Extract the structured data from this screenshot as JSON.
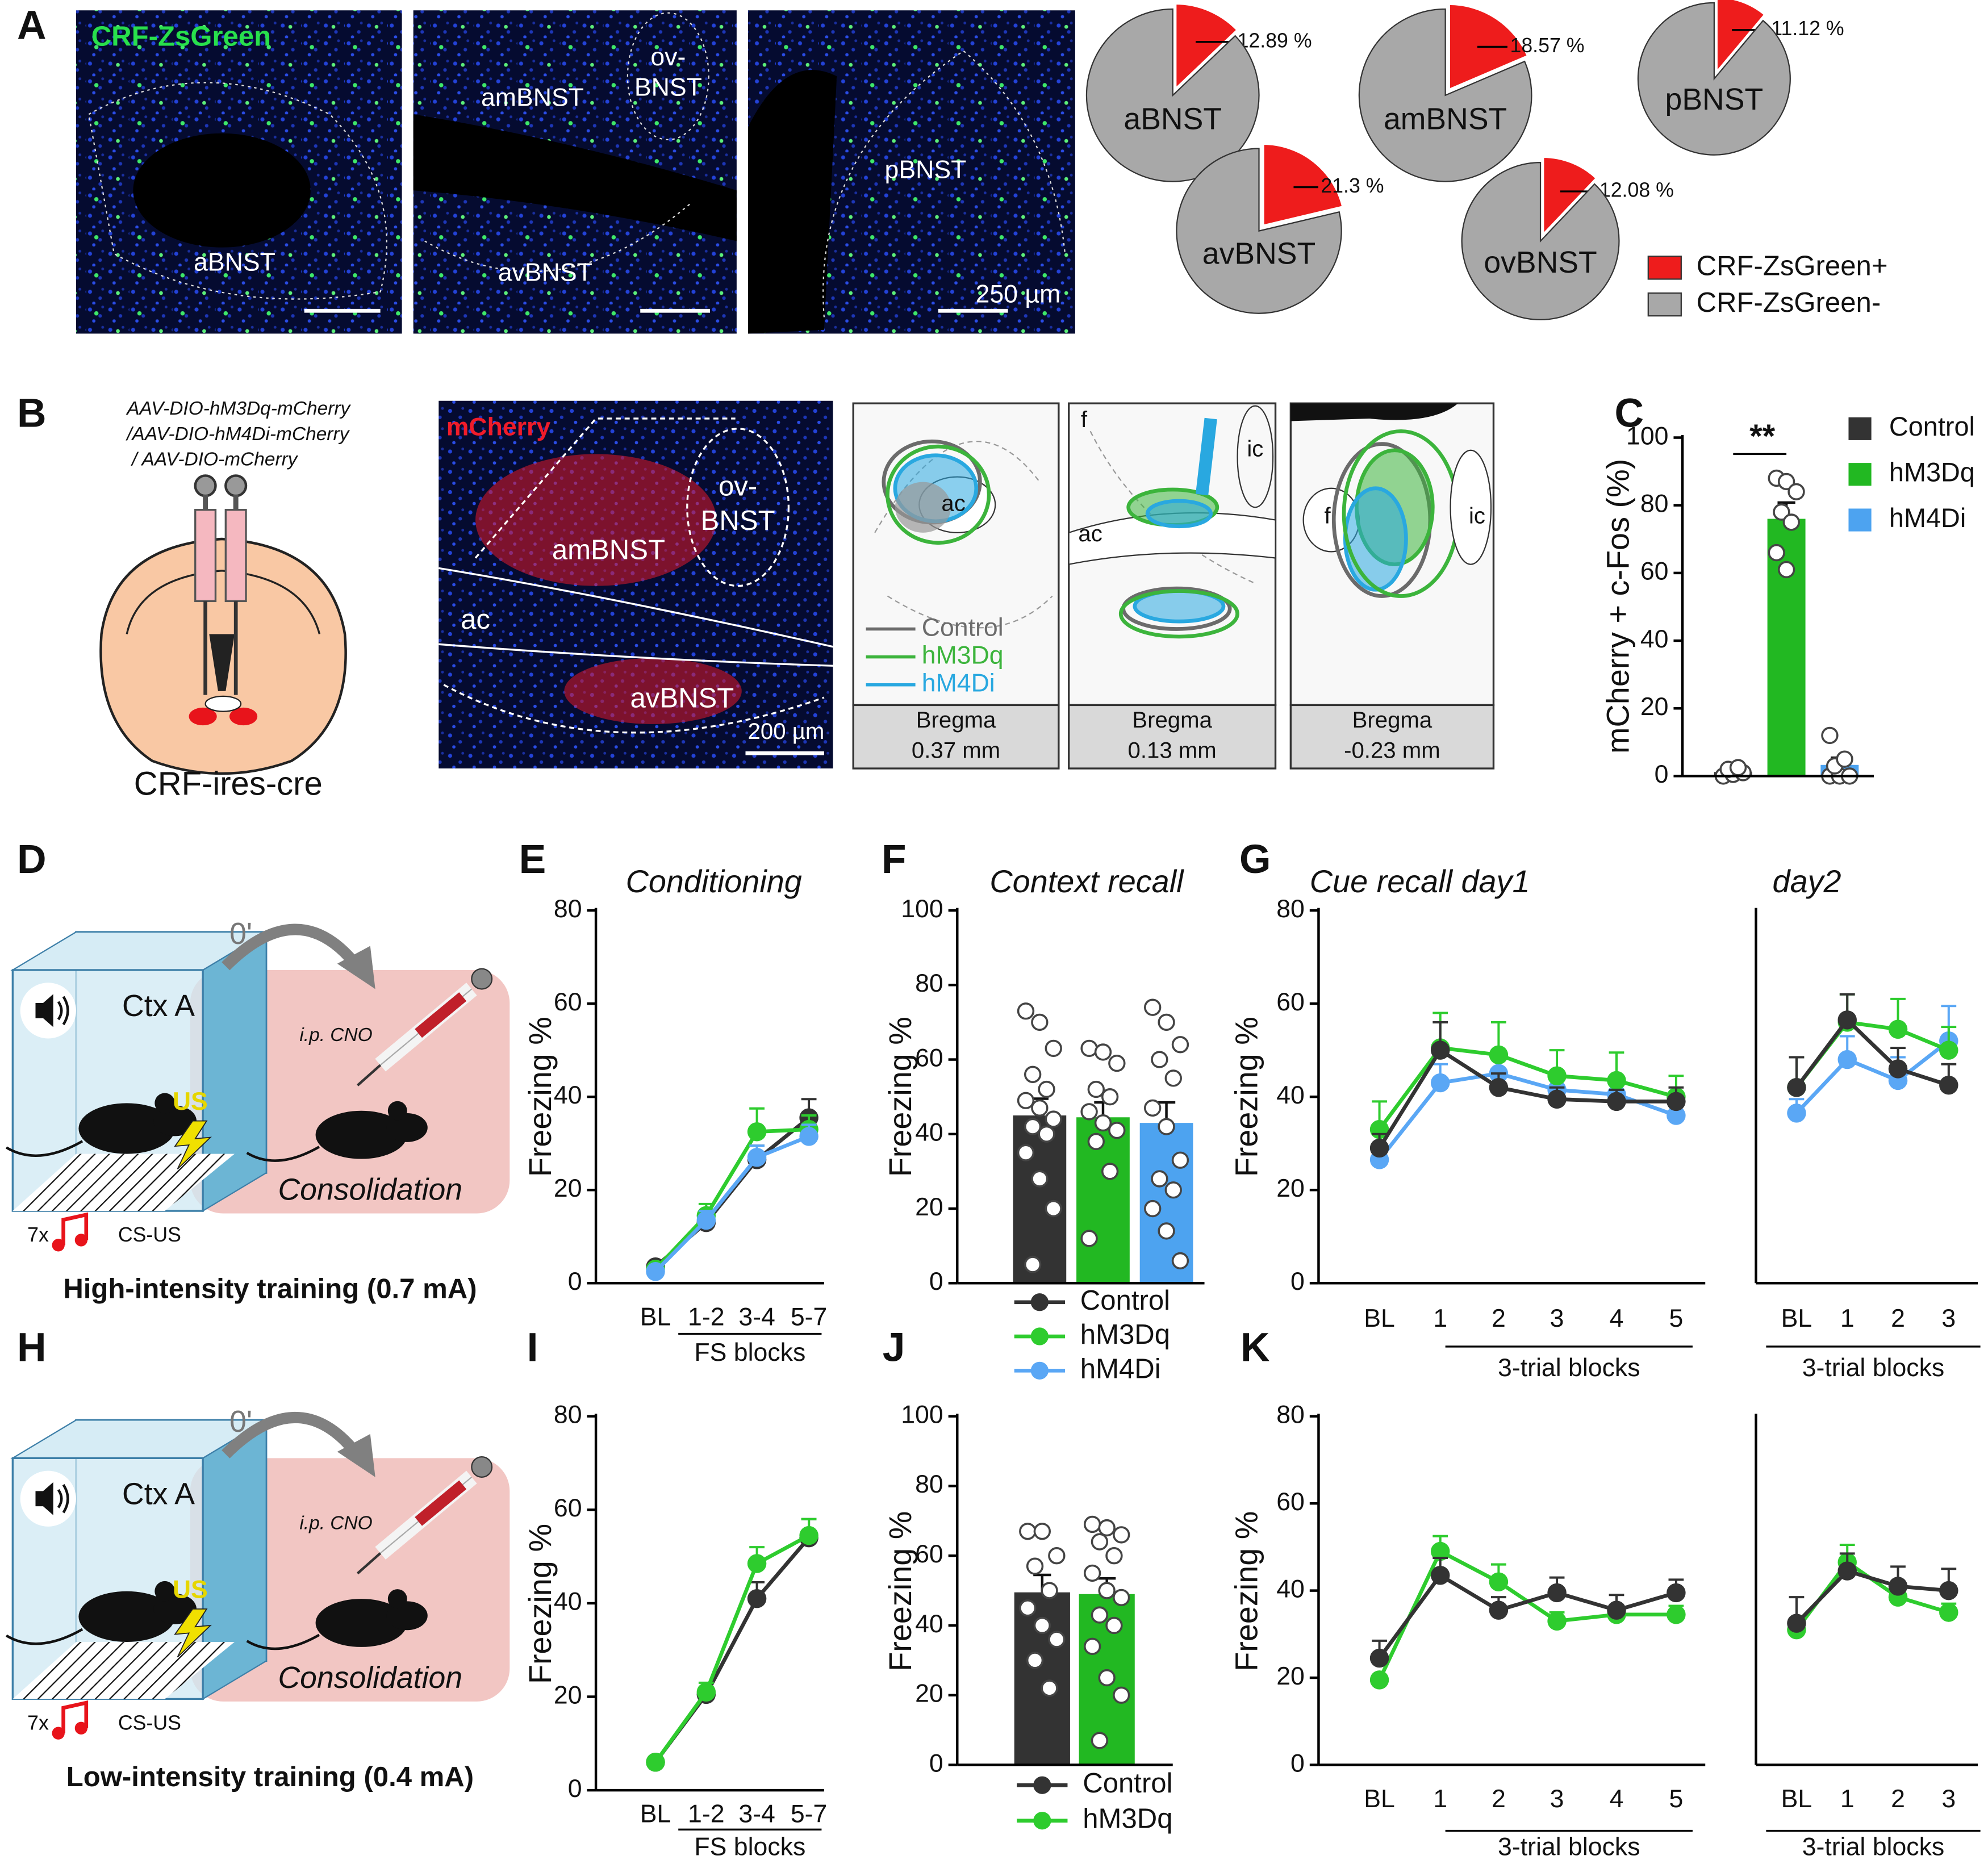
{
  "panel_labels": [
    "A",
    "B",
    "C",
    "D",
    "E",
    "F",
    "G",
    "H",
    "I",
    "J",
    "K"
  ],
  "panel_a": {
    "stain": "CRF-ZsGreen",
    "regions": [
      "aBNST",
      "amBNST",
      "avBNST",
      "pBNST"
    ],
    "ov": [
      "ov-",
      "BNST"
    ],
    "scale": "250 µm"
  },
  "panel_b": {
    "vectors": [
      "AAV-DIO-hM3Dq-mCherry",
      "/AAV-DIO-hM4Di-mCherry",
      "/ AAV-DIO-mCherry"
    ],
    "mouse_line": "CRF-ires-cre",
    "stain": "mCherry",
    "regions": [
      "amBNST",
      "avBNST",
      "ac"
    ],
    "ov": [
      "ov-",
      "BNST"
    ],
    "scale": "200 µm",
    "atlas_legend": [
      {
        "name": "Control",
        "color": "#6b6b6b"
      },
      {
        "name": "hM3Dq",
        "color": "#3cb43c"
      },
      {
        "name": "hM4Di",
        "color": "#29a8e0"
      }
    ],
    "atlas_labels": [
      [
        "ac"
      ],
      [
        "f",
        "ic",
        "ac"
      ],
      [
        "f",
        "ic"
      ]
    ],
    "bregma": [
      {
        "label": "Bregma",
        "level": "0.37 mm"
      },
      {
        "label": "Bregma",
        "level": "0.13 mm"
      },
      {
        "label": "Bregma",
        "level": "-0.23 mm"
      }
    ]
  },
  "panel_d": {
    "delay": "0'",
    "context": "Ctx A",
    "shock": "US",
    "injection": "i.p. CNO",
    "phase": "Consolidation",
    "trials": "7x",
    "pairing": "CS-US",
    "caption": "High-intensity training (0.7 mA)"
  },
  "panel_h": {
    "delay": "0'",
    "context": "Ctx A",
    "shock": "US",
    "injection": "i.p. CNO",
    "phase": "Consolidation",
    "trials": "7x",
    "pairing": "CS-US",
    "caption": "Low-intensity training (0.4 mA)"
  },
  "chart_data": [
    {
      "type": "pie",
      "categories": [
        "CRF-ZsGreen+",
        "CRF-ZsGreen-"
      ],
      "colors": [
        "#ee1c1c",
        "#a8a8a8"
      ],
      "pies": [
        {
          "title": "aBNST",
          "values": [
            12.89,
            87.11
          ],
          "value_label": "12.89 %"
        },
        {
          "title": "amBNST",
          "values": [
            18.57,
            81.43
          ],
          "value_label": "18.57 %"
        },
        {
          "title": "pBNST",
          "values": [
            11.12,
            88.88
          ],
          "value_label": "11.12 %"
        },
        {
          "title": "avBNST",
          "values": [
            21.3,
            78.7
          ],
          "value_label": "21.3 %"
        },
        {
          "title": "ovBNST",
          "values": [
            12.08,
            87.92
          ],
          "value_label": "12.08 %"
        }
      ]
    },
    {
      "type": "bar",
      "ylabel": "mCherry + c-Fos (%)",
      "categories": [
        "Control",
        "hM3Dq",
        "hM4Di"
      ],
      "colors": [
        "#333333",
        "#22b822",
        "#4da3f0"
      ],
      "values": [
        1.2,
        76,
        3.3
      ],
      "errors": [
        0.6,
        4.8,
        2.1
      ],
      "points": [
        [
          0,
          0.5,
          1,
          2,
          2.5
        ],
        [
          88,
          87,
          84,
          78,
          75,
          66,
          61
        ],
        [
          0,
          0,
          0,
          3,
          5,
          12
        ]
      ],
      "ylim": [
        0,
        100
      ],
      "yticks": [
        0,
        20,
        40,
        60,
        80,
        100
      ],
      "annotation": "**"
    },
    {
      "type": "line",
      "title": "Conditioning",
      "ylabel": "Freezing %",
      "xlabel": "FS blocks",
      "categories": [
        "BL",
        "1-2",
        "3-4",
        "5-7"
      ],
      "ylim": [
        0,
        80
      ],
      "yticks": [
        0,
        20,
        40,
        60,
        80
      ],
      "series": [
        {
          "name": "Control",
          "color": "#333333",
          "values": [
            3.5,
            13,
            26.5,
            35.5
          ],
          "errors": [
            1,
            2,
            3,
            4
          ]
        },
        {
          "name": "hM3Dq",
          "color": "#2ecc2e",
          "values": [
            3,
            14.5,
            32.5,
            33
          ],
          "errors": [
            0.8,
            2.5,
            5,
            3
          ]
        },
        {
          "name": "hM4Di",
          "color": "#5aa7f5",
          "values": [
            2.5,
            13.5,
            27,
            31.5
          ],
          "errors": [
            0.5,
            2,
            2.5,
            2.5
          ]
        }
      ]
    },
    {
      "type": "bar",
      "title": "Context recall",
      "ylabel": "Freezing  %",
      "colors": [
        "#333333",
        "#22b822",
        "#4da3f0"
      ],
      "values": [
        45,
        44.5,
        43
      ],
      "errors": [
        4.5,
        4,
        5.5
      ],
      "points": [
        [
          73,
          70,
          63,
          56,
          52,
          49,
          47,
          44,
          42,
          40,
          35,
          28,
          20,
          5
        ],
        [
          63,
          62,
          59,
          52,
          50,
          46,
          43,
          41,
          38,
          30,
          12
        ],
        [
          74,
          70,
          64,
          60,
          55,
          47,
          42,
          33,
          28,
          25,
          20,
          14,
          6
        ]
      ],
      "ylim": [
        0,
        100
      ],
      "yticks": [
        0,
        20,
        40,
        60,
        80,
        100
      ]
    },
    {
      "type": "line",
      "title": "Cue recall day1",
      "ylabel": "Freezing %",
      "xlabel": "3-trial blocks",
      "categories": [
        "BL",
        "1",
        "2",
        "3",
        "4",
        "5"
      ],
      "ylim": [
        0,
        80
      ],
      "yticks": [
        0,
        20,
        40,
        60,
        80
      ],
      "series": [
        {
          "color": "#5aa7f5",
          "values": [
            26.5,
            43,
            45,
            41.5,
            40.5,
            36
          ],
          "errors": [
            2,
            4,
            4,
            3,
            3,
            3
          ]
        },
        {
          "color": "#2ecc2e",
          "values": [
            33,
            50.5,
            49,
            44.5,
            43.5,
            40
          ],
          "errors": [
            6,
            7.5,
            7,
            5.5,
            6,
            4.5
          ]
        },
        {
          "color": "#333333",
          "values": [
            29,
            50,
            42,
            39.5,
            39,
            39
          ],
          "errors": [
            3,
            6,
            3,
            2.5,
            2.5,
            3
          ]
        }
      ]
    },
    {
      "type": "line",
      "title": "day2",
      "xlabel": "3-trial blocks",
      "categories": [
        "BL",
        "1",
        "2",
        "3"
      ],
      "ylim": [
        0,
        80
      ],
      "series": [
        {
          "color": "#5aa7f5",
          "values": [
            36.5,
            48,
            43.5,
            52
          ],
          "errors": [
            3,
            5,
            5,
            7.5
          ]
        },
        {
          "color": "#2ecc2e",
          "values": [
            42,
            56,
            54.5,
            50
          ],
          "errors": [
            6.5,
            6,
            6.5,
            5
          ]
        },
        {
          "color": "#333333",
          "values": [
            42,
            56.5,
            46,
            42.5
          ],
          "errors": [
            6.5,
            5.5,
            4.5,
            4.5
          ]
        }
      ]
    },
    {
      "type": "line",
      "ylabel": "Freezing %",
      "xlabel": "FS blocks",
      "categories": [
        "BL",
        "1-2",
        "3-4",
        "5-7"
      ],
      "ylim": [
        0,
        80
      ],
      "yticks": [
        0,
        20,
        40,
        60,
        80
      ],
      "series": [
        {
          "name": "Control",
          "color": "#333333",
          "values": [
            6,
            20.5,
            41,
            54
          ],
          "errors": [
            0.5,
            1.5,
            3.5,
            4
          ]
        },
        {
          "name": "hM3Dq",
          "color": "#2ecc2e",
          "values": [
            6,
            21,
            48.5,
            54.5
          ],
          "errors": [
            0.5,
            2,
            3.5,
            3.5
          ]
        }
      ]
    },
    {
      "type": "bar",
      "ylabel": "Freezing  %",
      "colors": [
        "#333333",
        "#22b822"
      ],
      "values": [
        49.5,
        49
      ],
      "errors": [
        5,
        4.5
      ],
      "points": [
        [
          67,
          67,
          60,
          57,
          50,
          45,
          40,
          36,
          30,
          22
        ],
        [
          69,
          68,
          66,
          64,
          60,
          55,
          50,
          48,
          43,
          40,
          34,
          25,
          20,
          7
        ]
      ],
      "ylim": [
        0,
        100
      ],
      "yticks": [
        0,
        20,
        40,
        60,
        80,
        100
      ]
    },
    {
      "type": "line",
      "ylabel": "Freezing %",
      "xlabel": "3-trial blocks",
      "categories": [
        "BL",
        "1",
        "2",
        "3",
        "4",
        "5"
      ],
      "ylim": [
        0,
        80
      ],
      "yticks": [
        0,
        20,
        40,
        60,
        80
      ],
      "series": [
        {
          "color": "#2ecc2e",
          "values": [
            19.5,
            49,
            42,
            33,
            34.5,
            34.5
          ],
          "errors": [
            1,
            3.5,
            4,
            2,
            2,
            2
          ]
        },
        {
          "color": "#333333",
          "values": [
            24.5,
            43.5,
            35.5,
            39.5,
            35.5,
            39.5
          ],
          "errors": [
            4,
            4,
            3,
            3.5,
            3.5,
            3
          ]
        }
      ]
    },
    {
      "type": "line",
      "xlabel": "3-trial blocks",
      "categories": [
        "BL",
        "1",
        "2",
        "3"
      ],
      "ylim": [
        0,
        80
      ],
      "series": [
        {
          "color": "#2ecc2e",
          "values": [
            31,
            46.5,
            38.5,
            35
          ],
          "errors": [
            1.5,
            4,
            3,
            2
          ]
        },
        {
          "color": "#333333",
          "values": [
            32.5,
            44.5,
            41,
            40
          ],
          "errors": [
            6,
            4,
            4.5,
            5
          ]
        }
      ]
    }
  ]
}
